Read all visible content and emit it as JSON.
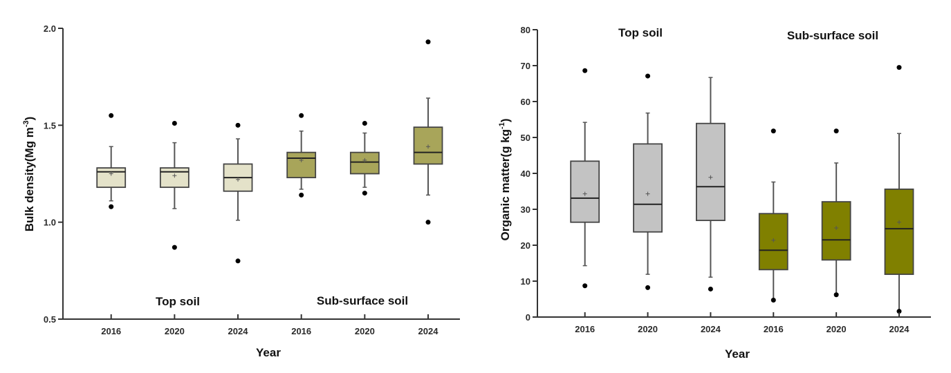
{
  "chart_data": [
    {
      "type": "box",
      "title": "",
      "xlabel": "Year",
      "ylabel": "Bulk density(Mg m",
      "ylabel_sup": "-3",
      "ylabel_close": ")",
      "ylim": [
        0.5,
        2.0
      ],
      "yticks": [
        0.5,
        1.0,
        1.5,
        2.0
      ],
      "ytick_labels": [
        "0.5",
        "1.0",
        "1.5",
        "2.0"
      ],
      "grid": false,
      "group_labels": [
        "Top soil",
        "Sub-surface soil"
      ],
      "categories": [
        "2016",
        "2020",
        "2024",
        "2016",
        "2020",
        "2024"
      ],
      "colors": {
        "Top soil": "#e4e2c9",
        "Sub-surface soil": "#a8a55a"
      },
      "boxes": [
        {
          "group": "Top soil",
          "year": "2016",
          "whisker_low": 1.11,
          "q1": 1.18,
          "median": 1.26,
          "mean": 1.25,
          "q3": 1.28,
          "whisker_high": 1.39,
          "outliers": [
            1.55,
            1.08
          ]
        },
        {
          "group": "Top soil",
          "year": "2020",
          "whisker_low": 1.07,
          "q1": 1.18,
          "median": 1.26,
          "mean": 1.24,
          "q3": 1.28,
          "whisker_high": 1.41,
          "outliers": [
            1.51,
            0.87
          ]
        },
        {
          "group": "Top soil",
          "year": "2024",
          "whisker_low": 1.01,
          "q1": 1.16,
          "median": 1.23,
          "mean": 1.22,
          "q3": 1.3,
          "whisker_high": 1.43,
          "outliers": [
            1.5,
            0.8
          ]
        },
        {
          "group": "Sub-surface soil",
          "year": "2016",
          "whisker_low": 1.17,
          "q1": 1.23,
          "median": 1.33,
          "mean": 1.32,
          "q3": 1.36,
          "whisker_high": 1.47,
          "outliers": [
            1.55,
            1.14
          ]
        },
        {
          "group": "Sub-surface soil",
          "year": "2020",
          "whisker_low": 1.18,
          "q1": 1.25,
          "median": 1.31,
          "mean": 1.32,
          "q3": 1.36,
          "whisker_high": 1.46,
          "outliers": [
            1.51,
            1.15
          ]
        },
        {
          "group": "Sub-surface soil",
          "year": "2024",
          "whisker_low": 1.14,
          "q1": 1.3,
          "median": 1.36,
          "mean": 1.39,
          "q3": 1.49,
          "whisker_high": 1.64,
          "outliers": [
            1.93,
            1.0
          ]
        }
      ]
    },
    {
      "type": "box",
      "title": "",
      "xlabel": "Year",
      "ylabel": "Organic matter(g kg",
      "ylabel_sup": "-1",
      "ylabel_close": ")",
      "ylim": [
        0,
        80
      ],
      "yticks": [
        0,
        10,
        20,
        30,
        40,
        50,
        60,
        70,
        80
      ],
      "ytick_labels": [
        "0",
        "10",
        "20",
        "30",
        "40",
        "50",
        "60",
        "70",
        "80"
      ],
      "grid": false,
      "group_labels": [
        "Top soil",
        "Sub-surface soil"
      ],
      "categories": [
        "2016",
        "2020",
        "2024",
        "2016",
        "2020",
        "2024"
      ],
      "colors": {
        "Top soil": "#c3c3c3",
        "Sub-surface soil": "#808000"
      },
      "boxes": [
        {
          "group": "Top soil",
          "year": "2016",
          "whisker_low": 14.3,
          "q1": 26.4,
          "median": 33.1,
          "mean": 34.3,
          "q3": 43.4,
          "whisker_high": 54.2,
          "outliers": [
            68.6,
            8.7
          ]
        },
        {
          "group": "Top soil",
          "year": "2020",
          "whisker_low": 11.9,
          "q1": 23.7,
          "median": 31.4,
          "mean": 34.3,
          "q3": 48.2,
          "whisker_high": 56.8,
          "outliers": [
            67.1,
            8.2
          ]
        },
        {
          "group": "Top soil",
          "year": "2024",
          "whisker_low": 11.1,
          "q1": 26.9,
          "median": 36.3,
          "mean": 38.9,
          "q3": 53.9,
          "whisker_high": 66.7,
          "outliers": [
            7.8
          ]
        },
        {
          "group": "Sub-surface soil",
          "year": "2016",
          "whisker_low": 5.0,
          "q1": 13.2,
          "median": 18.6,
          "mean": 21.4,
          "q3": 28.8,
          "whisker_high": 37.6,
          "outliers": [
            51.8,
            4.7
          ]
        },
        {
          "group": "Sub-surface soil",
          "year": "2020",
          "whisker_low": 6.5,
          "q1": 15.9,
          "median": 21.5,
          "mean": 24.8,
          "q3": 32.1,
          "whisker_high": 42.9,
          "outliers": [
            51.8,
            6.2
          ]
        },
        {
          "group": "Sub-surface soil",
          "year": "2024",
          "whisker_low": 1.8,
          "q1": 11.9,
          "median": 24.6,
          "mean": 26.4,
          "q3": 35.6,
          "whisker_high": 51.1,
          "outliers": [
            69.5,
            1.6
          ]
        }
      ]
    }
  ]
}
